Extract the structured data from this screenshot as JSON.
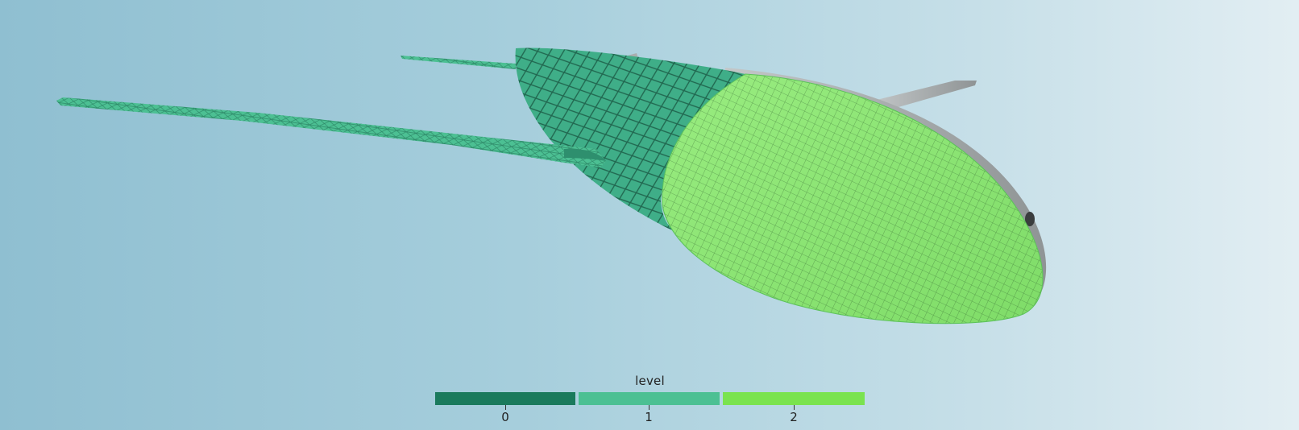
{
  "colors": {
    "background_left": "#8fbfd1",
    "background_right": "#e2eef3",
    "level_0": "#1a7a5c",
    "level_1": "#4cc093",
    "level_2": "#7ae34f",
    "untagged_surface": "#a9adae",
    "mesh_level_1": "#3fae88",
    "mesh_level_2": "#8ff07b"
  },
  "legend": {
    "title": "level",
    "entries": [
      {
        "label": "0",
        "color": "#1a7a5c"
      },
      {
        "label": "1",
        "color": "#4cc093"
      },
      {
        "label": "2",
        "color": "#7ae34f"
      }
    ]
  },
  "model": {
    "icon": "aircraft-mesh-icon"
  }
}
